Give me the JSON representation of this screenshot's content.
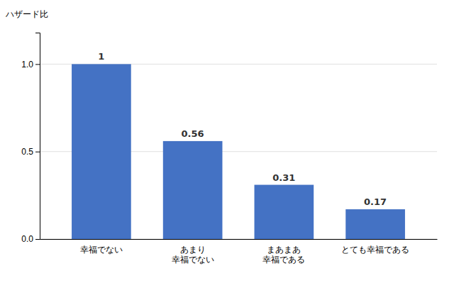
{
  "chart_data": {
    "type": "bar",
    "categories": [
      "幸福でない",
      "あまり\n幸福でない",
      "まあまあ\n幸福である",
      "とても幸福である"
    ],
    "values": [
      1.0,
      0.56,
      0.31,
      0.17
    ],
    "color": "#4472C4",
    "ylabel": "ハザード比",
    "ylim": [
      0,
      1.18
    ],
    "yticks": [
      {
        "value": 0,
        "label": "0.0"
      },
      0.5,
      {
        "value": 1,
        "label": "1.0"
      }
    ],
    "grid": true,
    "data_labels": true
  }
}
